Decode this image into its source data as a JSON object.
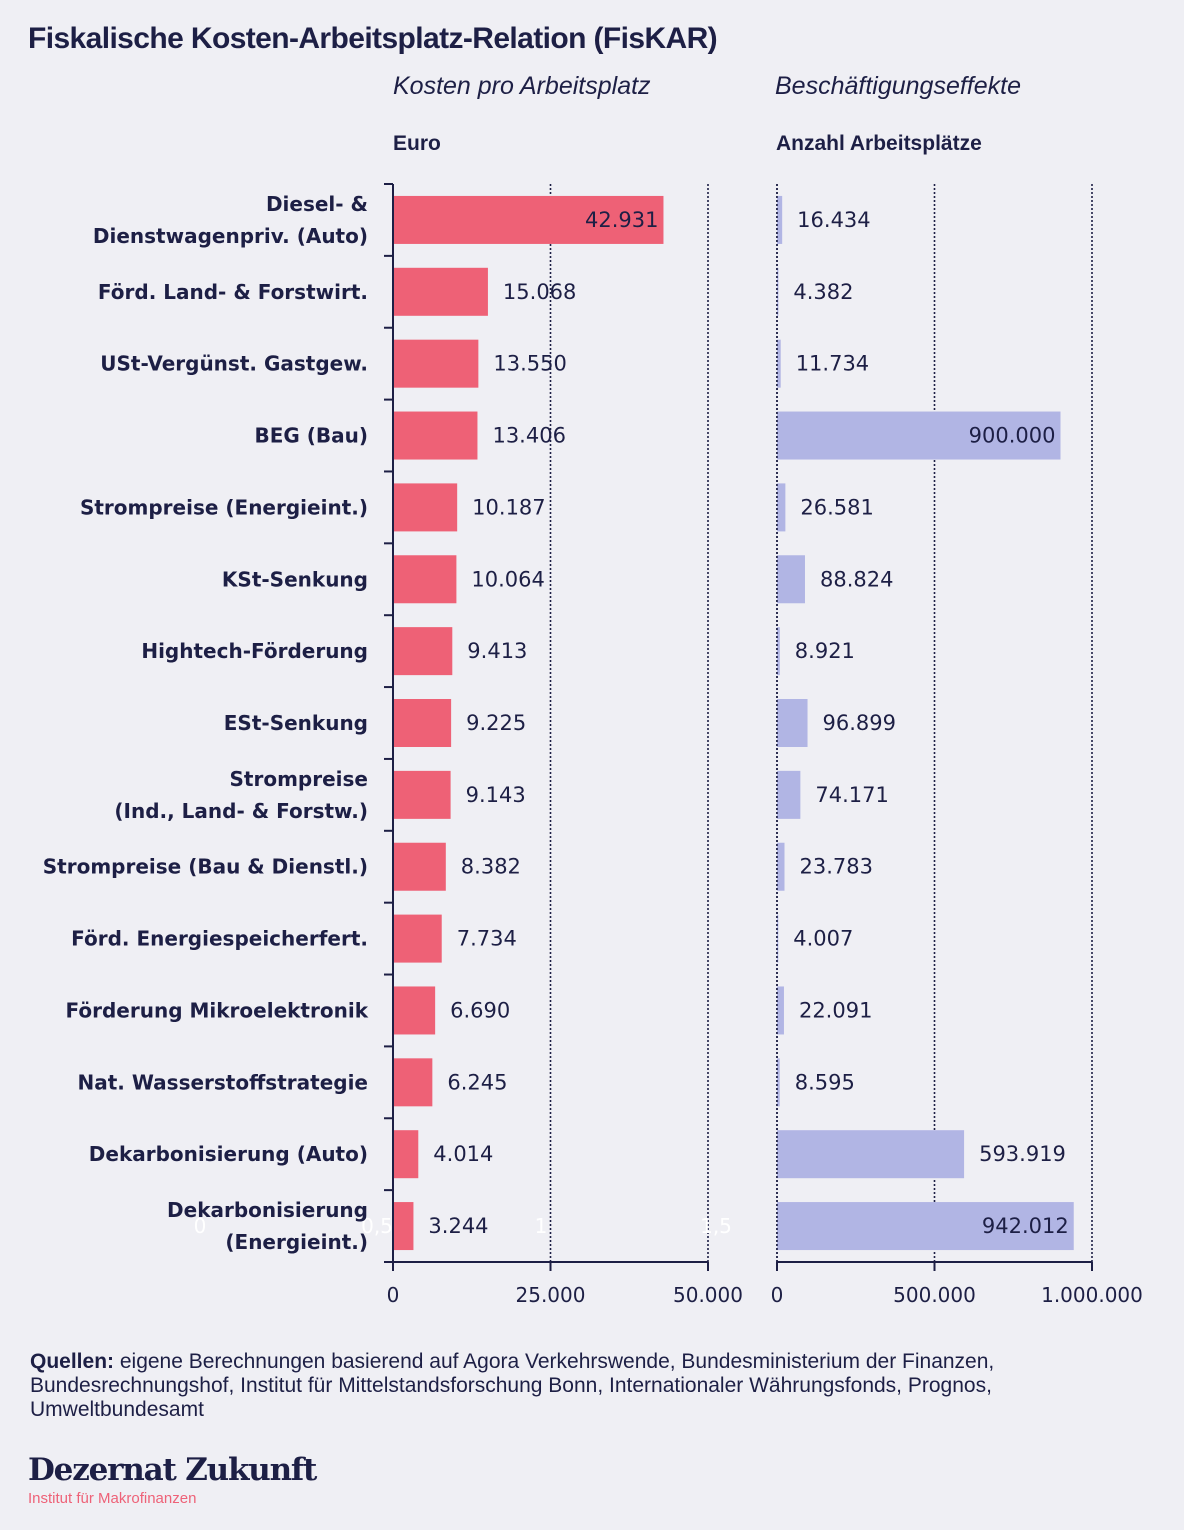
{
  "header": {
    "title": "Fiskalische Kosten-Arbeitsplatz-Relation (FisKAR)"
  },
  "colors": {
    "cost_bar": "#ee6176",
    "jobs_bar": "#b1b5e4",
    "text": "#1d1f45",
    "background": "#efeff4",
    "brand_accent": "#ee6278"
  },
  "chart_data": [
    {
      "type": "bar",
      "orientation": "horizontal",
      "subtitle": "Kosten pro Arbeitsplatz",
      "unit_label": "Euro",
      "xlabel": "Euro",
      "xlim": [
        0,
        50000
      ],
      "ticks": [
        0,
        25000,
        50000
      ],
      "tick_labels": [
        "0",
        "25.000",
        "50.000"
      ],
      "grid": true,
      "categories": [
        "Diesel- & Dienstwagenpriv. (Auto)",
        "Förd. Land- & Forstwirt.",
        "USt-Vergünst. Gastgew.",
        "BEG (Bau)",
        "Strompreise (Energieint.)",
        "KSt-Senkung",
        "Hightech-Förderung",
        "ESt-Senkung",
        "Strompreise (Ind., Land- & Forstw.)",
        "Strompreise (Bau & Dienstl.)",
        "Förd. Energiespeicherfert.",
        "Förderung Mikroelektronik",
        "Nat. Wasserstoffstrategie",
        "Dekarbonisierung (Auto)",
        "Dekarbonisierung (Energieint.)"
      ],
      "values": [
        42931,
        15068,
        13550,
        13406,
        10187,
        10064,
        9413,
        9225,
        9143,
        8382,
        7734,
        6690,
        6245,
        4014,
        3244
      ],
      "value_labels": [
        "42.931",
        "15.068",
        "13.550",
        "13.406",
        "10.187",
        "10.064",
        "9.413",
        "9.225",
        "9.143",
        "8.382",
        "7.734",
        "6.690",
        "6.245",
        "4.014",
        "3.244"
      ],
      "ghost_tick_labels": [
        "0",
        "0,5",
        "1",
        "1,5"
      ]
    },
    {
      "type": "bar",
      "orientation": "horizontal",
      "subtitle": "Beschäftigungseffekte",
      "unit_label": "Anzahl Arbeitsplätze",
      "xlabel": "Anzahl Arbeitsplätze",
      "xlim": [
        0,
        1000000
      ],
      "ticks": [
        0,
        500000,
        1000000
      ],
      "tick_labels": [
        "0",
        "500.000",
        "1.000.000"
      ],
      "grid": true,
      "categories": [
        "Diesel- & Dienstwagenpriv. (Auto)",
        "Förd. Land- & Forstwirt.",
        "USt-Vergünst. Gastgew.",
        "BEG (Bau)",
        "Strompreise (Energieint.)",
        "KSt-Senkung",
        "Hightech-Förderung",
        "ESt-Senkung",
        "Strompreise (Ind., Land- & Forstw.)",
        "Strompreise (Bau & Dienstl.)",
        "Förd. Energiespeicherfert.",
        "Förderung Mikroelektronik",
        "Nat. Wasserstoffstrategie",
        "Dekarbonisierung (Auto)",
        "Dekarbonisierung (Energieint.)"
      ],
      "values": [
        16434,
        4382,
        11734,
        900000,
        26581,
        88824,
        8921,
        96899,
        74171,
        23783,
        4007,
        22091,
        8595,
        593919,
        942012
      ],
      "value_labels": [
        "16.434",
        "4.382",
        "11.734",
        "900.000",
        "26.581",
        "88.824",
        "8.921",
        "96.899",
        "74.171",
        "23.783",
        "4.007",
        "22.091",
        "8.595",
        "593.919",
        "942.012"
      ]
    }
  ],
  "category_display_lines": [
    [
      "Diesel- &",
      "Dienstwagenpriv. (Auto)"
    ],
    [
      "Förd. Land- & Forstwirt."
    ],
    [
      "USt-Vergünst. Gastgew."
    ],
    [
      "BEG (Bau)"
    ],
    [
      "Strompreise (Energieint.)"
    ],
    [
      "KSt-Senkung"
    ],
    [
      "Hightech-Förderung"
    ],
    [
      "ESt-Senkung"
    ],
    [
      "Strompreise",
      "(Ind., Land- & Forstw.)"
    ],
    [
      "Strompreise (Bau & Dienstl.)"
    ],
    [
      "Förd. Energiespeicherfert."
    ],
    [
      "Förderung Mikroelektronik"
    ],
    [
      "Nat. Wasserstoffstrategie"
    ],
    [
      "Dekarbonisierung (Auto)"
    ],
    [
      "Dekarbonisierung",
      "(Energieint.)"
    ]
  ],
  "footer": {
    "sources_label": "Quellen:",
    "sources_text": " eigene Berechnungen basierend auf Agora Verkehrswende, Bundesministerium der Finanzen, Bundesrechnungshof, Institut für Mittelstandsforschung Bonn, Internationaler Währungsfonds, Prognos, Umweltbundesamt",
    "brand_name": "Dezernat Zukunft",
    "brand_subtitle": "Institut für Makrofinanzen"
  }
}
